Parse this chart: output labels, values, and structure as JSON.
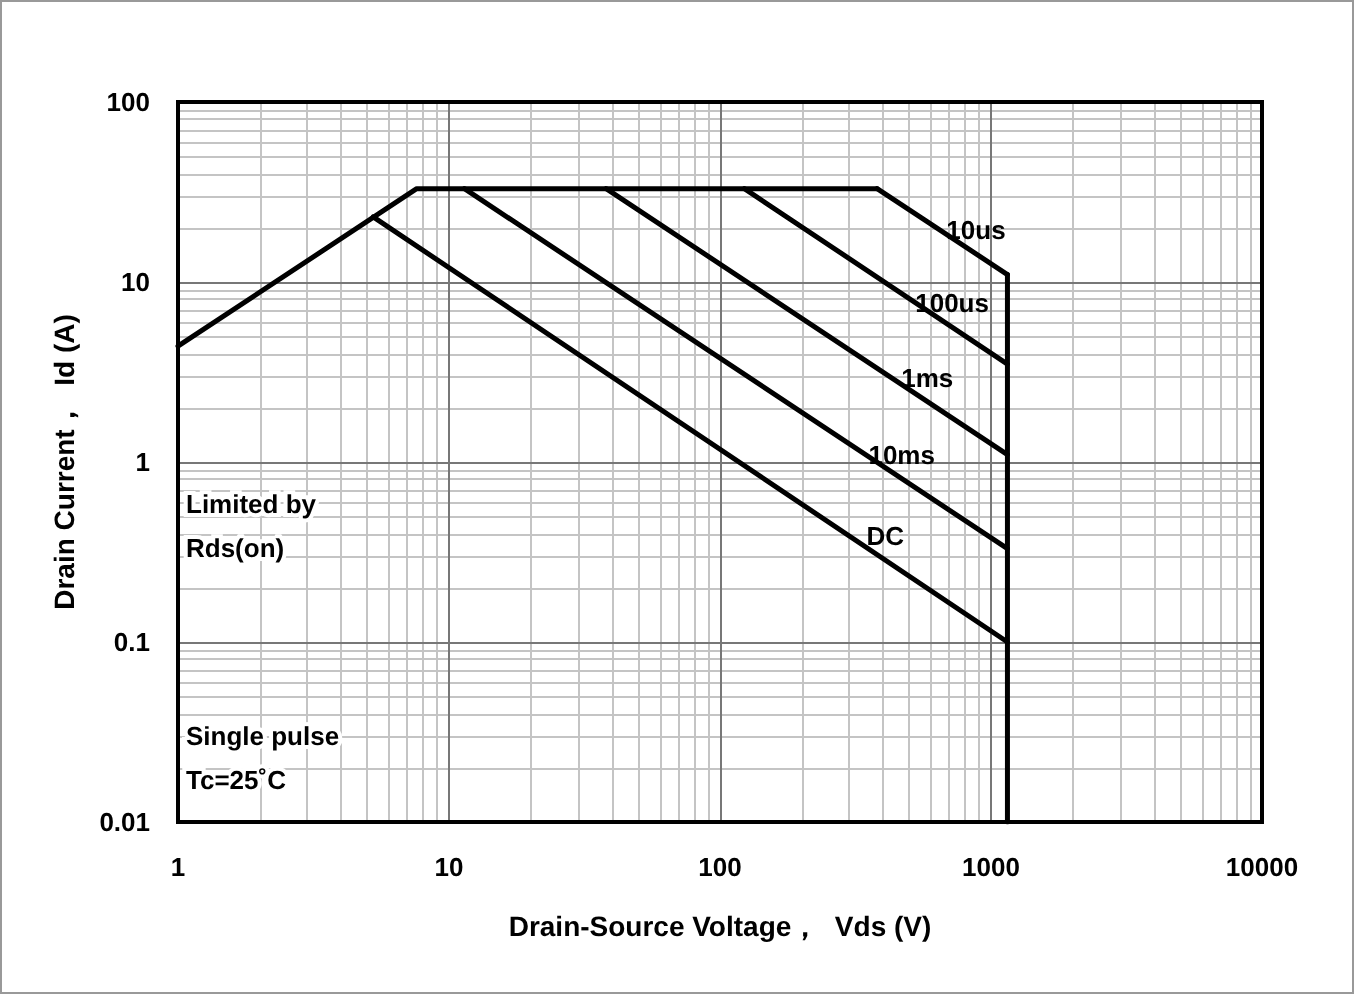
{
  "chart_data": {
    "type": "line",
    "xlabel": "Drain-Source Voltage，  Vds (V)",
    "ylabel": "Drain Current，  Id (A)",
    "log": "xy",
    "grid": true,
    "legend": false,
    "marker": "none",
    "line_style": "solid",
    "xlim": [
      1,
      10000
    ],
    "xticks": [
      1,
      10,
      100,
      1000,
      10000
    ],
    "ylim": [
      0.01,
      100
    ],
    "yticks": [
      0.01,
      0.1,
      1,
      10,
      100
    ],
    "annotations": [
      "Limited by Rds(on)",
      "Single pulse Tc=25˚C"
    ],
    "series": [
      {
        "color": "#000000",
        "x": [
          1,
          7.6,
          380
        ],
        "values": [
          4.4,
          33,
          33
        ]
      },
      {
        "name": "10us",
        "color": "#000000",
        "x": [
          380,
          1150
        ],
        "values": [
          33,
          11
        ]
      },
      {
        "name": "100us",
        "color": "#000000",
        "x": [
          123,
          1150
        ],
        "values": [
          33,
          3.5
        ]
      },
      {
        "name": "1ms",
        "color": "#000000",
        "x": [
          38,
          1150
        ],
        "values": [
          33,
          1.1
        ]
      },
      {
        "name": "10ms",
        "color": "#000000",
        "x": [
          11.4,
          1150
        ],
        "values": [
          33,
          0.33
        ]
      },
      {
        "name": "DC",
        "color": "#000000",
        "x": [
          5.25,
          1150
        ],
        "values": [
          23,
          0.1
        ]
      },
      {
        "color": "#000000",
        "x": [
          1150,
          1150
        ],
        "values": [
          11,
          0.01
        ]
      }
    ]
  }
}
